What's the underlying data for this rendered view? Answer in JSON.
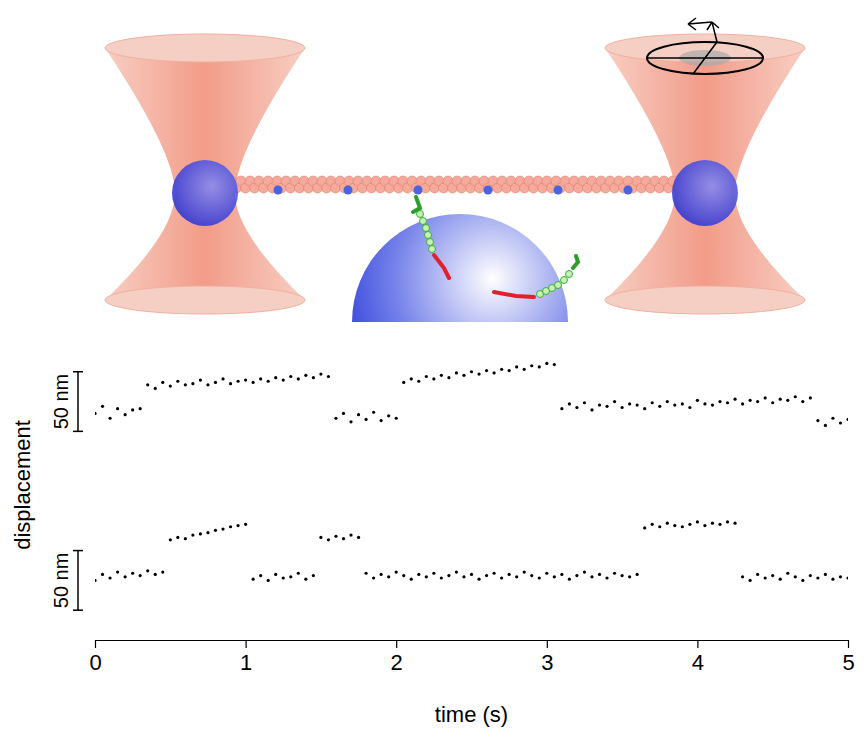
{
  "chart_data": {
    "type": "scatter",
    "x_label": "time (s)",
    "y_label": "displacement",
    "xlim": [
      0,
      5
    ],
    "xticks": [
      0,
      1,
      2,
      3,
      4,
      5
    ],
    "ylim": [
      0,
      260
    ],
    "tick_labels": "x",
    "marker": "dot",
    "scale_bars": [
      {
        "label": "50 nm",
        "y": 175,
        "length": 50
      },
      {
        "label": "50 nm",
        "y": 25,
        "length": 50
      }
    ],
    "x": [
      0,
      0.05,
      0.1,
      0.15,
      0.2,
      0.25,
      0.3,
      0.35,
      0.4,
      0.45,
      0.5,
      0.55,
      0.6,
      0.65,
      0.7,
      0.75,
      0.8,
      0.85,
      0.9,
      0.95,
      1,
      1.05,
      1.1,
      1.15,
      1.2,
      1.25,
      1.3,
      1.35,
      1.4,
      1.45,
      1.5,
      1.55,
      1.6,
      1.65,
      1.7,
      1.75,
      1.8,
      1.85,
      1.9,
      1.95,
      2,
      2.05,
      2.1,
      2.15,
      2.2,
      2.25,
      2.3,
      2.35,
      2.4,
      2.45,
      2.5,
      2.55,
      2.6,
      2.65,
      2.7,
      2.75,
      2.8,
      2.85,
      2.9,
      2.95,
      3,
      3.05,
      3.1,
      3.15,
      3.2,
      3.25,
      3.3,
      3.35,
      3.4,
      3.45,
      3.5,
      3.55,
      3.6,
      3.65,
      3.7,
      3.75,
      3.8,
      3.85,
      3.9,
      3.95,
      4,
      4.05,
      4.1,
      4.15,
      4.2,
      4.25,
      4.3,
      4.35,
      4.4,
      4.45,
      4.5,
      4.55,
      4.6,
      4.65,
      4.7,
      4.75,
      4.8,
      4.85,
      4.9,
      4.95,
      5
    ],
    "series": [
      {
        "color": "#000000",
        "values": [
          190,
          196,
          186,
          194,
          189,
          193,
          194,
          214,
          211,
          216,
          213,
          217,
          214,
          215,
          218,
          214,
          216,
          219,
          215,
          217,
          218,
          216,
          219,
          217,
          220,
          218,
          221,
          219,
          222,
          220,
          223,
          221,
          186,
          190,
          183,
          189,
          185,
          191,
          184,
          188,
          186,
          216,
          219,
          217,
          221,
          219,
          222,
          220,
          224,
          222,
          225,
          223,
          226,
          224,
          227,
          226,
          229,
          227,
          230,
          229,
          232,
          231,
          194,
          198,
          195,
          199,
          193,
          197,
          196,
          200,
          195,
          198,
          197,
          194,
          199,
          196,
          200,
          197,
          198,
          195,
          201,
          198,
          197,
          200,
          199,
          202,
          198,
          201,
          200,
          203,
          199,
          202,
          201,
          204,
          200,
          203,
          184,
          180,
          186,
          182,
          185
        ]
      },
      {
        "color": "#000000",
        "values": [
          50,
          55,
          52,
          57,
          53,
          56,
          54,
          58,
          55,
          57,
          84,
          86,
          85,
          88,
          89,
          90,
          92,
          93,
          95,
          96,
          97,
          51,
          54,
          50,
          55,
          52,
          53,
          56,
          51,
          54,
          86,
          84,
          87,
          85,
          88,
          86,
          56,
          52,
          55,
          53,
          57,
          54,
          51,
          55,
          53,
          56,
          52,
          54,
          57,
          53,
          55,
          51,
          54,
          56,
          52,
          55,
          53,
          57,
          54,
          52,
          56,
          53,
          55,
          51,
          54,
          57,
          53,
          55,
          52,
          56,
          54,
          53,
          55,
          94,
          97,
          95,
          98,
          96,
          95,
          97,
          99,
          96,
          98,
          97,
          99,
          98,
          53,
          50,
          55,
          52,
          54,
          51,
          56,
          53,
          50,
          54,
          52,
          55,
          51,
          53,
          52
        ]
      }
    ]
  }
}
